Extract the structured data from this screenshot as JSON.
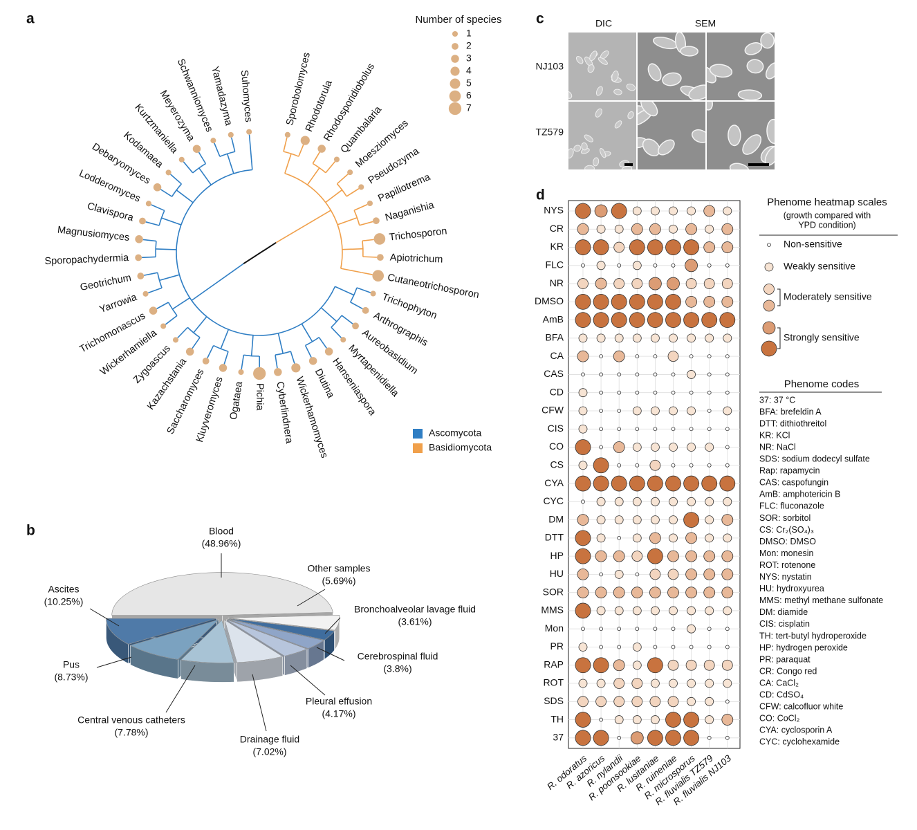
{
  "panel_labels": [
    "a",
    "b",
    "c",
    "d"
  ],
  "chart_data": [
    {
      "type": "tree",
      "legend_title": "Number of species",
      "size_ticks": [
        1,
        2,
        3,
        4,
        5,
        6,
        7
      ],
      "marker_color": "#dcb083",
      "highlight": {
        "series": 1,
        "index": 2,
        "color": "#d62728"
      },
      "series": [
        {
          "name": "Ascomycota",
          "color": "#2f7ec4",
          "categories": [
            "Trichophyton",
            "Arthrographis",
            "Aureobasidium",
            "Myrtapenidiella",
            "Hanseniaspora",
            "Diutina",
            "Wickerhamomyces",
            "Cyberlindnera",
            "Pichia",
            "Ogataea",
            "Kluyveromyces",
            "Saccharomyces",
            "Kazachstania",
            "Zygoascus",
            "Wickerhamiella",
            "Trichomonascus",
            "Yarrowia",
            "Geotrichum",
            "Sporopachydermia",
            "Magnusiomyces",
            "Clavispora",
            "Lodderomyces",
            "Debaryomyces",
            "Kodamaea",
            "Kurtzmaniella",
            "Meyerozyma",
            "Schwanniomyces",
            "Yamadazyma",
            "Suhomyces"
          ],
          "values": [
            1,
            2,
            2,
            1,
            3,
            3,
            4,
            3,
            7,
            1,
            3,
            2,
            3,
            1,
            1,
            3,
            1,
            2,
            2,
            3,
            2,
            1,
            3,
            1,
            1,
            3,
            1,
            1,
            1
          ]
        },
        {
          "name": "Basidiomycota",
          "color": "#f0a04b",
          "categories": [
            "Sporobolomyces",
            "Rhodotorula",
            "Rhodosporidiobolus",
            "Quambalaria",
            "Moesziomyces",
            "Pseudozyma",
            "Papiliotrema",
            "Naganishia",
            "Trichosporon",
            "Apiotrichum",
            "Cutaneotrichosporon"
          ],
          "values": [
            1,
            4,
            3,
            1,
            1,
            1,
            1,
            2,
            6,
            2,
            6
          ]
        }
      ]
    },
    {
      "type": "pie",
      "categories": [
        "Blood",
        "Other samples",
        "Bronchoalveolar lavage fluid",
        "Cerebrospinal fluid",
        "Pleural effusion",
        "Drainage fluid",
        "Central venous catheters",
        "Pus",
        "Ascites"
      ],
      "values": [
        48.96,
        5.69,
        3.61,
        3.8,
        4.17,
        7.02,
        7.78,
        8.73,
        10.25
      ],
      "value_labels": [
        "(48.96%)",
        "(5.69%)",
        "(3.61%)",
        "(3.8%)",
        "(4.17%)",
        "(7.02%)",
        "(7.78%)",
        "(8.73%)",
        "(10.25%)"
      ],
      "colors": [
        "#e6e6e6",
        "#f2f2f2",
        "#3f6d9e",
        "#8fa5c8",
        "#b7c5dc",
        "#dce3ec",
        "#a8c3d5",
        "#7ba2c0",
        "#4f7aa8"
      ]
    },
    {
      "type": "dot-heatmap",
      "categories": [
        "R. odoratus",
        "R. azoricus",
        "R. nylandii",
        "R. poonsookiae",
        "R. lusitaniae",
        "R. ruineniae",
        "R. microsporus",
        "R. fluvialis TZ579",
        "R. fluvialis NJ103"
      ],
      "rows": [
        "NYS",
        "CR",
        "KR",
        "FLC",
        "NR",
        "DMSO",
        "AmB",
        "BFA",
        "CA",
        "CAS",
        "CD",
        "CFW",
        "CIS",
        "CO",
        "CS",
        "CYA",
        "CYC",
        "DM",
        "DTT",
        "HP",
        "HU",
        "SOR",
        "MMS",
        "Mon",
        "PR",
        "RAP",
        "ROT",
        "SDS",
        "TH",
        "37"
      ],
      "values": [
        [
          5,
          4,
          5,
          1,
          1,
          1,
          1,
          3,
          1
        ],
        [
          3,
          1,
          1,
          3,
          3,
          1,
          3,
          1,
          3
        ],
        [
          5,
          5,
          2,
          5,
          5,
          5,
          5,
          3,
          3
        ],
        [
          0,
          1,
          0,
          1,
          0,
          0,
          4,
          0,
          0
        ],
        [
          2,
          3,
          2,
          2,
          4,
          4,
          2,
          2,
          2
        ],
        [
          5,
          5,
          5,
          5,
          5,
          5,
          3,
          3,
          3
        ],
        [
          5,
          5,
          5,
          5,
          5,
          5,
          5,
          5,
          5
        ],
        [
          1,
          1,
          1,
          1,
          1,
          1,
          1,
          1,
          1
        ],
        [
          3,
          0,
          3,
          0,
          0,
          2,
          0,
          0,
          0
        ],
        [
          0,
          0,
          0,
          0,
          0,
          0,
          1,
          0,
          0
        ],
        [
          1,
          0,
          0,
          0,
          0,
          0,
          0,
          0,
          0
        ],
        [
          1,
          0,
          0,
          1,
          1,
          1,
          1,
          0,
          1
        ],
        [
          1,
          0,
          0,
          0,
          0,
          0,
          0,
          0,
          0
        ],
        [
          5,
          0,
          3,
          1,
          1,
          1,
          1,
          1,
          0
        ],
        [
          1,
          5,
          0,
          0,
          2,
          0,
          0,
          0,
          0
        ],
        [
          5,
          5,
          5,
          5,
          5,
          5,
          5,
          5,
          5
        ],
        [
          0,
          1,
          1,
          1,
          1,
          1,
          1,
          1,
          1
        ],
        [
          3,
          1,
          1,
          1,
          1,
          1,
          5,
          1,
          3
        ],
        [
          5,
          1,
          0,
          1,
          3,
          1,
          3,
          1,
          1
        ],
        [
          5,
          3,
          3,
          2,
          5,
          3,
          3,
          3,
          3
        ],
        [
          3,
          0,
          1,
          0,
          2,
          2,
          3,
          3,
          3
        ],
        [
          3,
          3,
          3,
          3,
          3,
          3,
          3,
          3,
          3
        ],
        [
          5,
          1,
          1,
          1,
          1,
          1,
          1,
          1,
          1
        ],
        [
          0,
          0,
          0,
          0,
          0,
          0,
          1,
          0,
          0
        ],
        [
          1,
          0,
          0,
          1,
          0,
          0,
          0,
          0,
          0
        ],
        [
          5,
          5,
          3,
          1,
          5,
          2,
          2,
          2,
          2
        ],
        [
          1,
          1,
          2,
          2,
          1,
          1,
          1,
          1,
          1
        ],
        [
          2,
          2,
          2,
          2,
          2,
          2,
          1,
          1,
          0
        ],
        [
          5,
          0,
          1,
          1,
          1,
          5,
          5,
          1,
          3
        ],
        [
          5,
          5,
          0,
          4,
          5,
          5,
          5,
          0,
          0
        ]
      ],
      "level_colors": [
        "#ffffff",
        "#f7e4d4",
        "#f3d5bf",
        "#e8b898",
        "#dc9c74",
        "#c8733f"
      ],
      "grid": true,
      "scale_title": "Phenome heatmap scales",
      "scale_subtitle": [
        "(growth compared with",
        "YPD condition)"
      ],
      "scale": [
        {
          "label": "Non-sensitive",
          "levels": [
            0
          ]
        },
        {
          "label": "Weakly sensitive",
          "levels": [
            1
          ]
        },
        {
          "label": "Moderately sensitive",
          "levels": [
            2,
            3
          ]
        },
        {
          "label": "Strongly sensitive",
          "levels": [
            4,
            5
          ]
        }
      ],
      "codes_title": "Phenome codes",
      "codes": [
        "37: 37 °C",
        "BFA: brefeldin A",
        "DTT: dithiothreitol",
        "KR: KCl",
        "NR: NaCl",
        "SDS: sodium dodecyl sulfate",
        "Rap: rapamycin",
        "CAS: caspofungin",
        "AmB: amphotericin B",
        "FLC: fluconazole",
        "SOR: sorbitol",
        "CS: Cr₂(SO₄)₃",
        "DMSO: DMSO",
        "Mon: monesin",
        "ROT: rotenone",
        "NYS: nystatin",
        "HU: hydroxyurea",
        "MMS: methyl methane sulfonate",
        "DM: diamide",
        "CIS: cisplatin",
        "TH: tert-butyl hydroperoxide",
        "HP: hydrogen peroxide",
        "PR: paraquat",
        "CR: Congo red",
        "CA: CaCl₂",
        "CD: CdSO₄",
        "CFW: calcofluor white",
        "CO: CoCl₂",
        "CYA: cyclosporin A",
        "CYC: cyclohexamide"
      ]
    }
  ],
  "micrographs": {
    "columns": [
      "DIC",
      "SEM"
    ],
    "rows": [
      "NJ103",
      "TZ579"
    ]
  }
}
